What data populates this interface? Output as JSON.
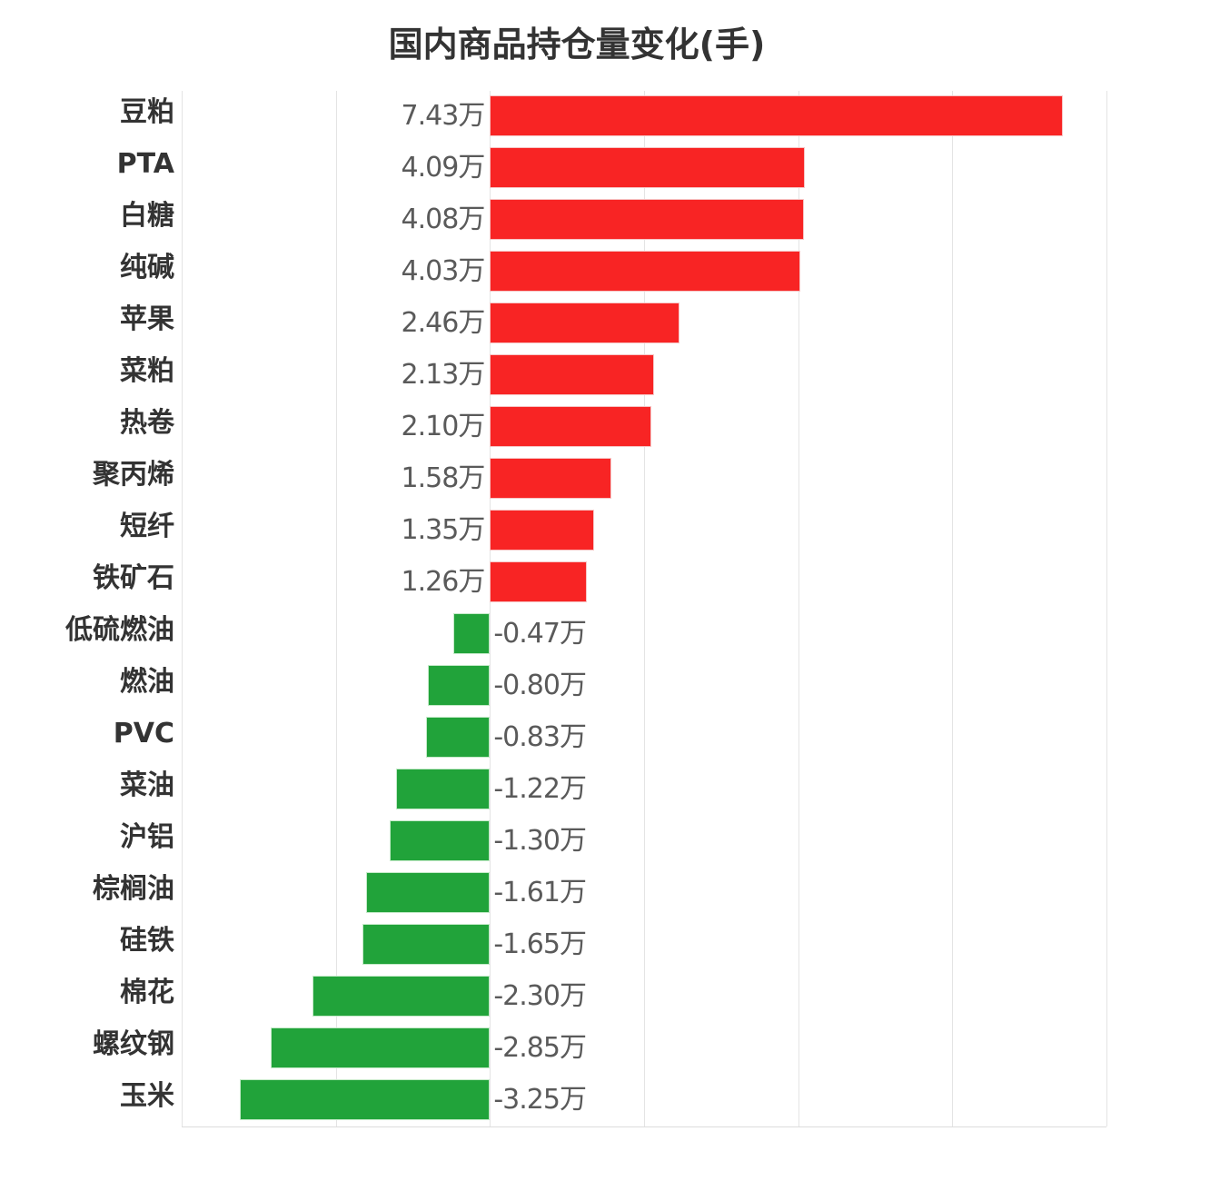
{
  "chart_data": {
    "type": "bar",
    "orientation": "horizontal",
    "title": "国内商品持仓量变化(手)",
    "xlabel": "",
    "ylabel": "",
    "unit": "万",
    "xlim": [
      -4,
      8
    ],
    "grid": true,
    "legend": null,
    "colors": {
      "positive": "#f82424",
      "negative": "#21a33a"
    },
    "categories": [
      "豆粕",
      "PTA",
      "白糖",
      "纯碱",
      "苹果",
      "菜粕",
      "热卷",
      "聚丙烯",
      "短纤",
      "铁矿石",
      "低硫燃油",
      "燃油",
      "PVC",
      "菜油",
      "沪铝",
      "棕榈油",
      "硅铁",
      "棉花",
      "螺纹钢",
      "玉米"
    ],
    "values": [
      7.43,
      4.09,
      4.08,
      4.03,
      2.46,
      2.13,
      2.1,
      1.58,
      1.35,
      1.26,
      -0.47,
      -0.8,
      -0.83,
      -1.22,
      -1.3,
      -1.61,
      -1.65,
      -2.3,
      -2.85,
      -3.25
    ],
    "labels": [
      "7.43万",
      "4.09万",
      "4.08万",
      "4.03万",
      "2.46万",
      "2.13万",
      "2.10万",
      "1.58万",
      "1.35万",
      "1.26万",
      "-0.47万",
      "-0.80万",
      "-0.83万",
      "-1.22万",
      "-1.30万",
      "-1.61万",
      "-1.65万",
      "-2.30万",
      "-2.85万",
      "-3.25万"
    ]
  }
}
